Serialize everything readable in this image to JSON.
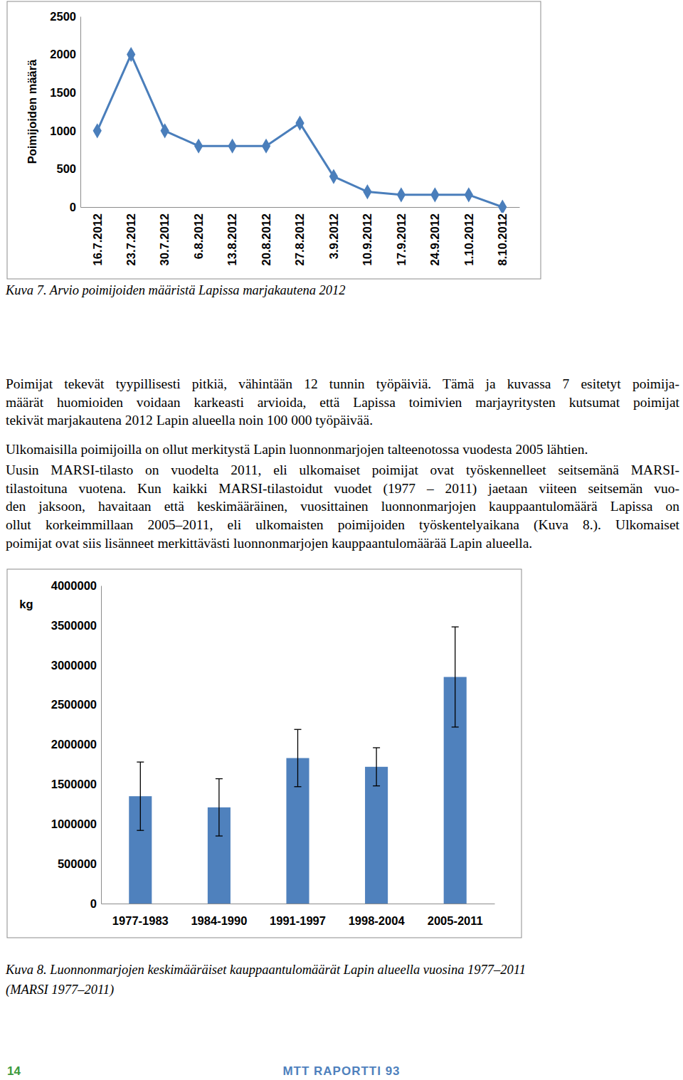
{
  "chart_data": [
    {
      "type": "line",
      "ylabel": "Poimijoiden määrä",
      "categories": [
        "16.7.2012",
        "23.7.2012",
        "30.7.2012",
        "6.8.2012",
        "13.8.2012",
        "20.8.2012",
        "27.8.2012",
        "3.9.2012",
        "10.9.2012",
        "17.9.2012",
        "24.9.2012",
        "1.10.2012",
        "8.10.2012"
      ],
      "values": [
        1000,
        2000,
        1000,
        800,
        800,
        800,
        1100,
        400,
        200,
        160,
        160,
        160,
        0
      ],
      "color": "#4a7ebb",
      "marker": "diamond",
      "ylim": [
        0,
        2500
      ],
      "yticks": [
        0,
        500,
        1000,
        1500,
        2000,
        2500
      ],
      "grid": false
    },
    {
      "type": "bar",
      "ylabel": "kg",
      "categories": [
        "1977-1983",
        "1984-1990",
        "1991-1997",
        "1998-2004",
        "2005-2011"
      ],
      "values": [
        1350000,
        1210000,
        1830000,
        1720000,
        2850000
      ],
      "errors": [
        430000,
        360000,
        360000,
        240000,
        630000
      ],
      "color": "#4f81bd",
      "ylim": [
        0,
        4000000
      ],
      "yticks": [
        0,
        500000,
        1000000,
        1500000,
        2000000,
        2500000,
        3000000,
        3500000,
        4000000
      ],
      "grid": false
    }
  ],
  "document": {
    "captions": [
      {
        "label": "Kuva 7.",
        "lines": [
          "Arvio poimijoiden määristä Lapissa marjakautena 2012"
        ]
      },
      {
        "label": "Kuva 8.",
        "lines": [
          "Luonnonmarjojen keskimääräiset kauppaantulomäärät Lapin alueella vuosina 1977–2011",
          "(MARSI 1977–2011)"
        ]
      }
    ],
    "paragraphs": [
      [
        "Poimijat tekevät tyypillisesti pitkiä, vähintään 12 tunnin työpäiviä. Tämä ja kuvassa 7 esitetyt poimija-",
        "määrät huomioiden voidaan karkeasti arvioida, että Lapissa toimivien marjayritysten kutsumat poimijat",
        "tekivät marjakautena 2012 Lapin alueella noin 100 000 työpäivää."
      ],
      [
        "Ulkomaisilla poimijoilla on ollut merkitystä Lapin luonnonmarjojen talteenotossa vuodesta 2005 lähtien."
      ],
      [
        "Uusin MARSI-tilasto on vuodelta 2011, eli ulkomaiset poimijat ovat työskennelleet seitsemänä MARSI-",
        "tilastoituna vuotena. Kun kaikki MARSI-tilastoidut vuodet (1977 – 2011) jaetaan viiteen seitsemän vuo-",
        "den jaksoon, havaitaan että keskimääräinen, vuosittainen luonnonmarjojen kauppaantulomäärä Lapissa on",
        "ollut korkeimmillaan 2005–2011, eli ulkomaisten poimijoiden työskentelyaikana (Kuva 8.). Ulkomaiset",
        "poimijat ovat siis lisänneet merkittävästi luonnonmarjojen kauppaantulomäärää Lapin alueella."
      ]
    ],
    "page_number": "14",
    "footer": "MTT RAPORTTI 93"
  }
}
